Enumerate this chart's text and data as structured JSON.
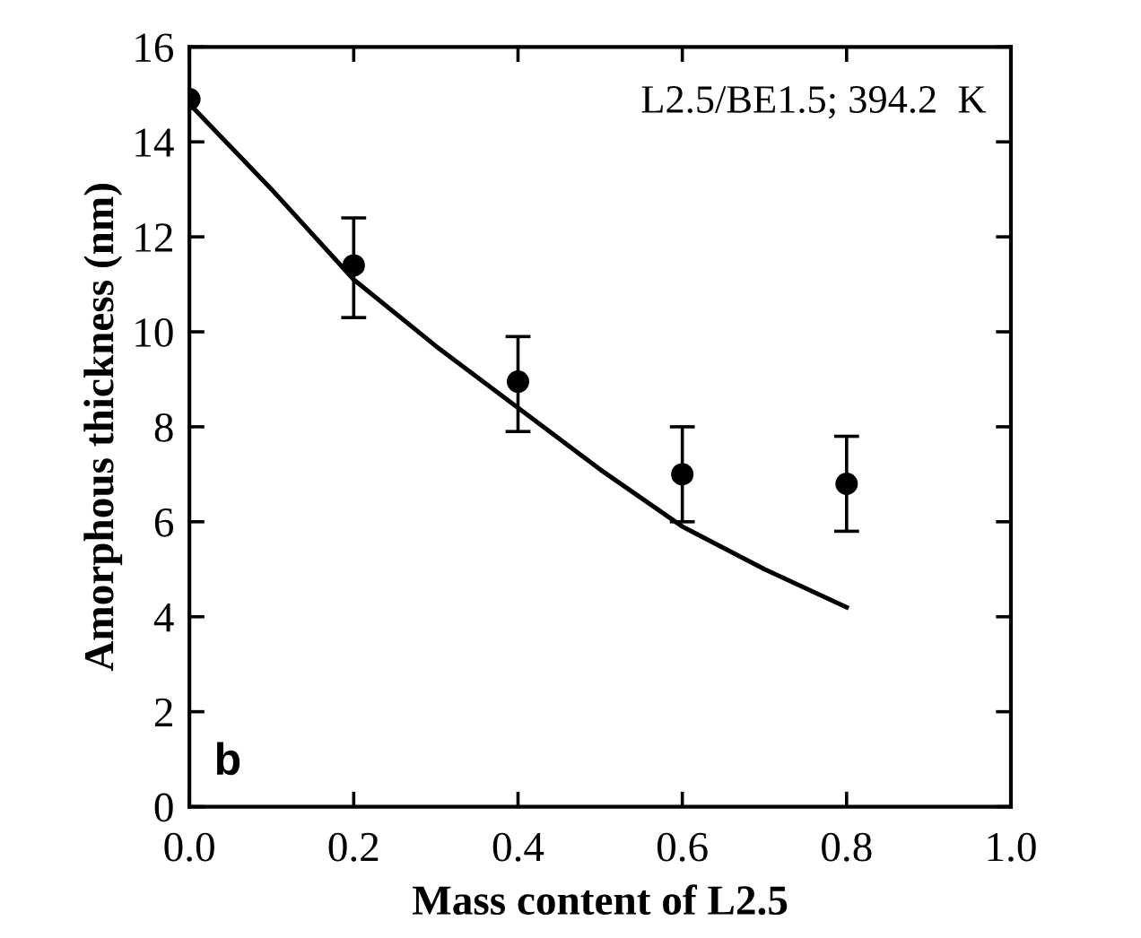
{
  "chart_data": {
    "type": "scatter",
    "xlabel": "Mass content of L2.5",
    "ylabel": "Amorphous thickness (nm)",
    "annotations": [
      "L2.5/BE1.5; 394.2  K",
      "b"
    ],
    "xlim": [
      0.0,
      1.0
    ],
    "ylim": [
      0,
      16
    ],
    "xticks": [
      {
        "value": 0.0,
        "label": "0.0"
      },
      {
        "value": 0.2,
        "label": "0.2"
      },
      {
        "value": 0.4,
        "label": "0.4"
      },
      {
        "value": 0.6,
        "label": "0.6"
      },
      {
        "value": 0.8,
        "label": "0.8"
      },
      {
        "value": 1.0,
        "label": "1.0"
      }
    ],
    "yticks": [
      0,
      2,
      4,
      6,
      8,
      10,
      12,
      14,
      16
    ],
    "grid": false,
    "legend": false,
    "series": [
      {
        "color": "#000000",
        "marker": "circle",
        "x": [
          0.0,
          0.2,
          0.4,
          0.6,
          0.8
        ],
        "values": [
          14.9,
          11.4,
          8.95,
          7.0,
          6.8
        ],
        "errors": [
          null,
          [
            10.3,
            12.4
          ],
          [
            7.9,
            9.9
          ],
          [
            6.0,
            8.0
          ],
          [
            5.8,
            7.8
          ]
        ]
      },
      {
        "type": "line",
        "color": "#000000",
        "marker": "none",
        "line_style": "solid",
        "x": [
          0.0,
          0.1,
          0.2,
          0.3,
          0.4,
          0.5,
          0.6,
          0.7,
          0.8
        ],
        "values": [
          14.8,
          13.0,
          11.1,
          9.7,
          8.4,
          7.1,
          5.9,
          5.0,
          4.2
        ]
      }
    ]
  }
}
